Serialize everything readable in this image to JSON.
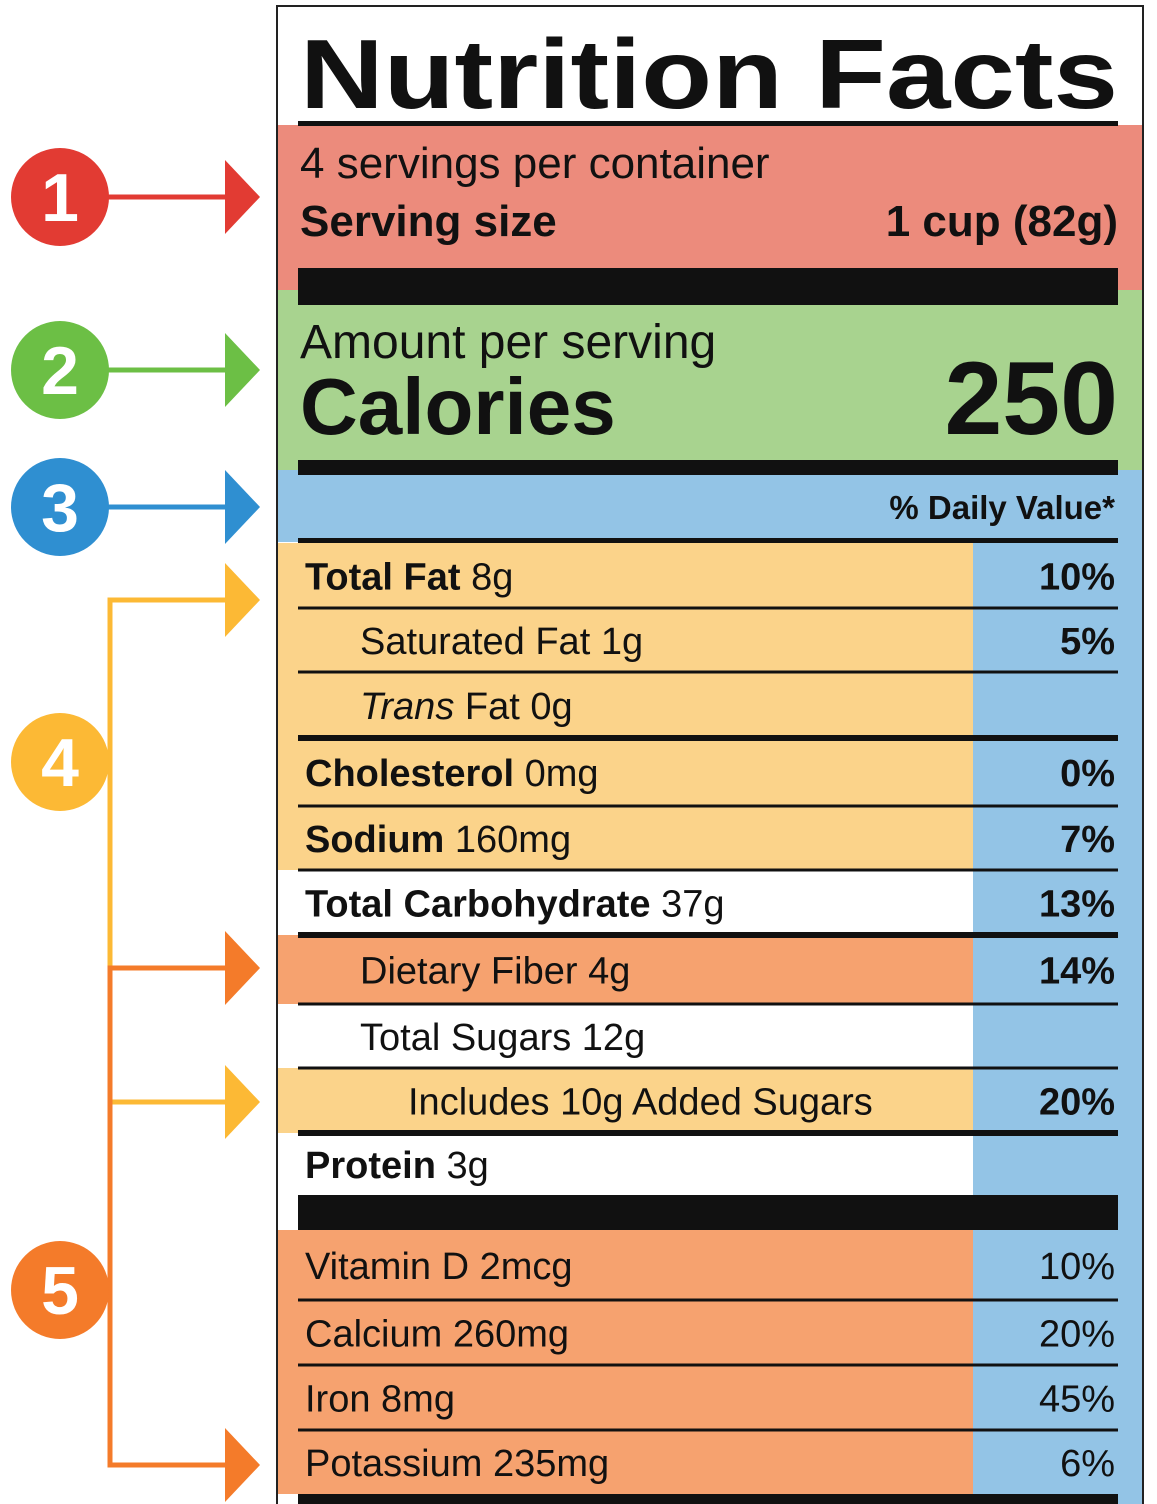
{
  "annotations": [
    "1",
    "2",
    "3",
    "4",
    "5"
  ],
  "header": {
    "title": "Nutrition Facts"
  },
  "serving": {
    "servings": "4 servings per container",
    "label": "Serving size",
    "size": "1 cup (82g)"
  },
  "calories": {
    "amount_label": "Amount per serving",
    "label": "Calories",
    "value": "250"
  },
  "daily_value_header": "% Daily Value*",
  "rows": [
    {
      "name": "Total Fat",
      "amount": "8g",
      "dv": "10%"
    },
    {
      "name": "Saturated Fat",
      "amount": "1g",
      "dv": "5%"
    },
    {
      "name_italic": "Trans",
      "name": "Fat",
      "amount": "0g"
    },
    {
      "name": "Cholesterol",
      "amount": "0mg",
      "dv": "0%"
    },
    {
      "name": "Sodium",
      "amount": "160mg",
      "dv": "7%"
    },
    {
      "name": "Total Carbohydrate",
      "amount": "37g",
      "dv": "13%"
    },
    {
      "name": "Dietary Fiber",
      "amount": "4g",
      "dv": "14%"
    },
    {
      "name": "Total Sugars",
      "amount": "12g"
    },
    {
      "name": "Includes 10g Added Sugars",
      "dv": "20%"
    },
    {
      "name": "Protein",
      "amount": "3g"
    },
    {
      "name": "Vitamin D",
      "amount": "2mcg",
      "dv": "10%"
    },
    {
      "name": "Calcium",
      "amount": "260mg",
      "dv": "20%"
    },
    {
      "name": "Iron",
      "amount": "8mg",
      "dv": "45%"
    },
    {
      "name": "Potassium",
      "amount": "235mg",
      "dv": "6%"
    }
  ]
}
